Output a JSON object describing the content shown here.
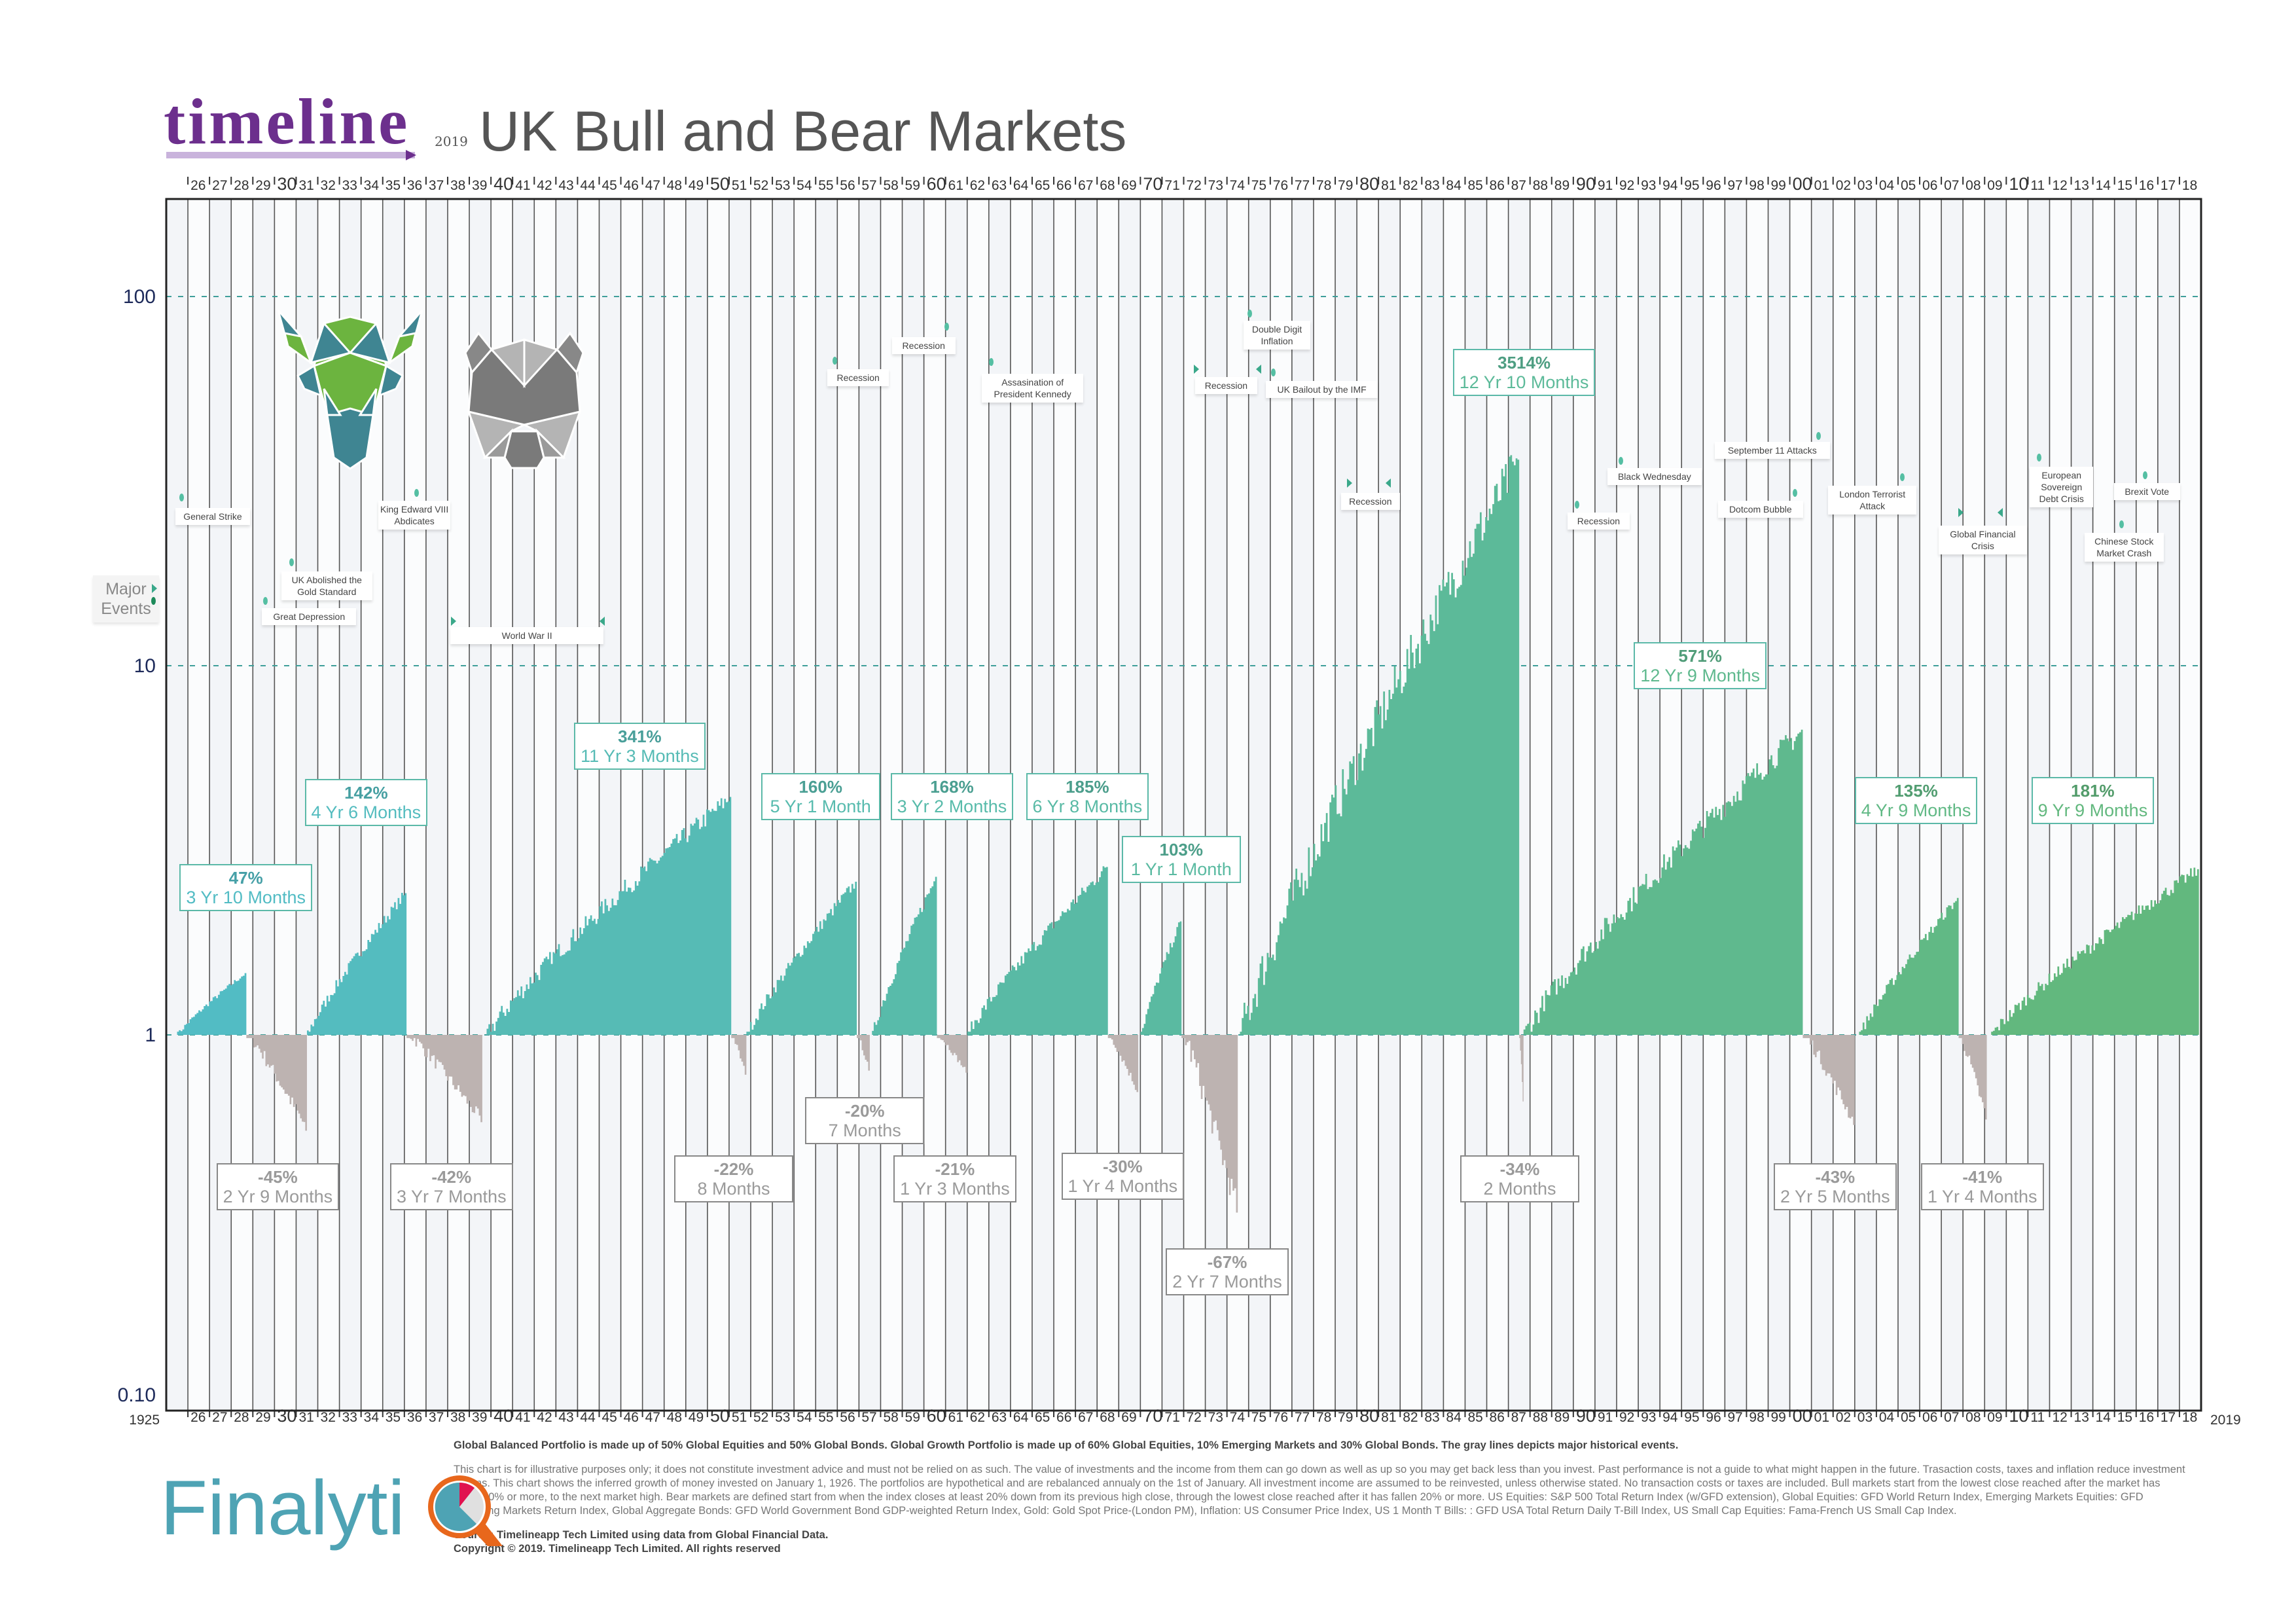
{
  "header": {
    "brand": "timeline",
    "year": "2019",
    "title": "UK Bull and Bear Markets"
  },
  "chart_data": {
    "type": "area",
    "yscale": "log",
    "xlim": [
      1925,
      2019
    ],
    "ylim": [
      0.096,
      184
    ],
    "y_ticks": [
      100,
      10,
      1,
      0.1
    ],
    "y_tick_labels": [
      "100",
      "10",
      "1",
      "0.10"
    ],
    "reference_lines": [
      100,
      10,
      1
    ],
    "x_end_labels": [
      "1925",
      "2019"
    ],
    "x_tick_labels": [
      "26",
      "27",
      "28",
      "29",
      "30",
      "31",
      "32",
      "33",
      "34",
      "35",
      "36",
      "37",
      "38",
      "39",
      "40",
      "41",
      "42",
      "43",
      "44",
      "45",
      "46",
      "47",
      "48",
      "49",
      "50",
      "51",
      "52",
      "53",
      "54",
      "55",
      "56",
      "57",
      "58",
      "59",
      "60",
      "61",
      "62",
      "63",
      "64",
      "65",
      "66",
      "67",
      "68",
      "69",
      "70",
      "71",
      "72",
      "73",
      "74",
      "75",
      "76",
      "77",
      "78",
      "79",
      "80",
      "81",
      "82",
      "83",
      "84",
      "85",
      "86",
      "87",
      "88",
      "89",
      "90",
      "91",
      "92",
      "93",
      "94",
      "95",
      "96",
      "97",
      "98",
      "99",
      "00",
      "01",
      "02",
      "03",
      "04",
      "05",
      "06",
      "07",
      "08",
      "09",
      "10",
      "11",
      "12",
      "13",
      "14",
      "15",
      "16",
      "17",
      "18"
    ],
    "grid": true,
    "colors": {
      "bull_start": "#52bcc6",
      "bull_end": "#63b87a",
      "bear": "#bdb3b1",
      "bear_text": "#9a9a9a",
      "reference": "#3f9f9a"
    },
    "segments": [
      {
        "type": "bull",
        "start": 1925.5,
        "end": 1928.7,
        "value": 1.47,
        "return": "47%",
        "duration": "3 Yr 10 Months"
      },
      {
        "type": "bear",
        "start": 1928.7,
        "end": 1931.5,
        "value": 0.55,
        "return": "-45%",
        "duration": "2 Yr 9 Months"
      },
      {
        "type": "bull",
        "start": 1931.5,
        "end": 1936.1,
        "value": 2.42,
        "return": "142%",
        "duration": "4 Yr 6 Months"
      },
      {
        "type": "bear",
        "start": 1936.1,
        "end": 1939.6,
        "value": 0.58,
        "return": "-42%",
        "duration": "3 Yr 7 Months"
      },
      {
        "type": "bull",
        "start": 1939.8,
        "end": 1951.1,
        "value": 4.41,
        "return": "341%",
        "duration": "11 Yr 3 Months"
      },
      {
        "type": "bear",
        "start": 1951.1,
        "end": 1951.8,
        "value": 0.78,
        "return": "-22%",
        "duration": "8 Months"
      },
      {
        "type": "bull",
        "start": 1951.8,
        "end": 1956.9,
        "value": 2.6,
        "return": "160%",
        "duration": "5 Yr 1 Month"
      },
      {
        "type": "bear",
        "start": 1956.9,
        "end": 1957.5,
        "value": 0.8,
        "return": "-20%",
        "duration": "7 Months"
      },
      {
        "type": "bull",
        "start": 1957.6,
        "end": 1960.6,
        "value": 2.68,
        "return": "168%",
        "duration": "3 Yr 2 Months"
      },
      {
        "type": "bear",
        "start": 1960.6,
        "end": 1962.0,
        "value": 0.79,
        "return": "-21%",
        "duration": "1 Yr 3 Months"
      },
      {
        "type": "bull",
        "start": 1962.0,
        "end": 1968.5,
        "value": 2.85,
        "return": "185%",
        "duration": "6 Yr 8 Months"
      },
      {
        "type": "bear",
        "start": 1968.5,
        "end": 1969.9,
        "value": 0.7,
        "return": "-30%",
        "duration": "1 Yr 4 Months"
      },
      {
        "type": "bull",
        "start": 1970.0,
        "end": 1971.9,
        "value": 2.03,
        "return": "103%",
        "duration": "1 Yr 1 Month"
      },
      {
        "type": "bear",
        "start": 1971.9,
        "end": 1974.5,
        "value": 0.33,
        "return": "-67%",
        "duration": "2 Yr 7 Months"
      },
      {
        "type": "bull",
        "start": 1974.6,
        "end": 1987.5,
        "value": 36.14,
        "return": "3514%",
        "duration": "12 Yr 10 Months"
      },
      {
        "type": "bear",
        "start": 1987.5,
        "end": 1987.7,
        "value": 0.66,
        "return": "-34%",
        "duration": "2 Months"
      },
      {
        "type": "bull",
        "start": 1987.7,
        "end": 2000.6,
        "value": 6.71,
        "return": "571%",
        "duration": "12 Yr 9 Months"
      },
      {
        "type": "bear",
        "start": 2000.6,
        "end": 2003.0,
        "value": 0.57,
        "return": "-43%",
        "duration": "2 Yr 5 Months"
      },
      {
        "type": "bull",
        "start": 2003.2,
        "end": 2007.8,
        "value": 2.35,
        "return": "135%",
        "duration": "4 Yr 9 Months"
      },
      {
        "type": "bear",
        "start": 2007.8,
        "end": 2009.1,
        "value": 0.59,
        "return": "-41%",
        "duration": "1 Yr 4 Months"
      },
      {
        "type": "bull",
        "start": 2009.3,
        "end": 2018.9,
        "value": 2.81,
        "return": "181%",
        "duration": "9 Yr 9 Months"
      }
    ]
  },
  "events": {
    "legend": "Major Events",
    "items": [
      {
        "label": "General Strike"
      },
      {
        "label": "Great Depression"
      },
      {
        "label": "UK Abolished the Gold Standard"
      },
      {
        "label": "King Edward VIII Abdicates"
      },
      {
        "label": "World War II"
      },
      {
        "label": "Recession"
      },
      {
        "label": "Recession"
      },
      {
        "label": "Assasination of President Kennedy"
      },
      {
        "label": "Recession"
      },
      {
        "label": "Double Digit Inflation"
      },
      {
        "label": "UK Bailout by the IMF"
      },
      {
        "label": "Recession"
      },
      {
        "label": "Recession"
      },
      {
        "label": "Black Wednesday"
      },
      {
        "label": "Dotcom Bubble"
      },
      {
        "label": "September 11 Attacks"
      },
      {
        "label": "London Terrorist Attack"
      },
      {
        "label": "Global Financial Crisis"
      },
      {
        "label": "European Sovereign Debt Crisis"
      },
      {
        "label": "Chinese Stock Market Crash"
      },
      {
        "label": "Brexit Vote"
      }
    ]
  },
  "footer": {
    "portfolio_note": "Global Balanced Portfolio is made up of 50% Global Equities and 50% Global Bonds. Global Growth Portfolio is made up of 60% Global Equities, 10% Emerging Markets and 30% Global Bonds. The gray lines depicts major historical events.",
    "disclaimer": "This chart is for illustrative purposes only; it does not constitute investment advice and must not be relied on as such. The value of investments and the income from them can go down as well as up so you may get back less than you invest. Past performance is not a guide to what might happen in the future.  Trasaction costs, taxes and inflation reduce investment returns. This chart shows the inferred growth of money invested on January 1, 1926. The portfolios are hypothetical and are rebalanced annualy on the 1st of January. All investment income are assumed to be reinvested, unless otherwise stated. No transaction costs or taxes are included. Bull markets start from the lowest close reached after the market has fallen 20% or more, to the next market high. Bear markets are defined start from when the index closes at least 20% down from its previous high close, through the lowest close reached after it has fallen 20% or more. US Equities: S&P 500 Total Return Index (w/GFD extension), Global Equities: GFD World Return Index, Emerging Markets Equities: GFD Emerging Markets Return Index, Global Aggregate Bonds: GFD World Government Bond GDP-weighted Return Index, Gold: Gold Spot Price-(London PM), Inflation: US Consumer Price Index, US 1 Month T Bills: : GFD USA Total Return Daily T-Bill Index, US Small Cap Equities: Fama-French US Small Cap Index.",
    "source": "Source: Timelineapp Tech Limited using data from Global Financial Data.",
    "copyright": "Copyright © 2019. Timelineapp Tech Limited. All rights reserved"
  },
  "sponsor_logo": {
    "text": "Finalyti",
    "full_name": "FinalytiQ",
    "ring_color": "#e8671c",
    "pie_colors": [
      "#4ea3b4",
      "#e0e0e0",
      "#e0124f"
    ]
  }
}
